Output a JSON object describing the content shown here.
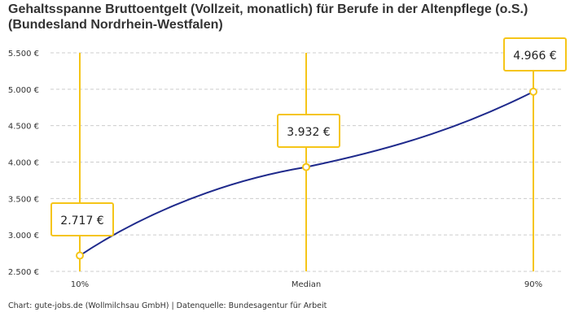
{
  "chart_data": {
    "type": "line",
    "title": "Gehaltsspanne Bruttoentgelt (Vollzeit, monatlich) für Berufe in der Altenpflege (o.S.)",
    "subtitle": "(Bundesland Nordrhein-Westfalen)",
    "categories": [
      "10%",
      "Median",
      "90%"
    ],
    "values": [
      2717,
      3932,
      4966
    ],
    "data_labels": [
      "2.717 €",
      "3.932 €",
      "4.966 €"
    ],
    "ylim": [
      2500,
      5500
    ],
    "yticks": [
      2500,
      3000,
      3500,
      4000,
      4500,
      5000,
      5500
    ],
    "ytick_labels": [
      "2.500 €",
      "3.000 €",
      "3.500 €",
      "4.000 €",
      "4.500 €",
      "5.000 €",
      "5.500 €"
    ],
    "grid": true,
    "colors": {
      "line": "#1f2a8c",
      "marker": "#f5c518",
      "grid": "#cccccc"
    }
  },
  "footer": "Chart: gute-jobs.de (Wollmilchsau GmbH) | Datenquelle: Bundesagentur für Arbeit"
}
